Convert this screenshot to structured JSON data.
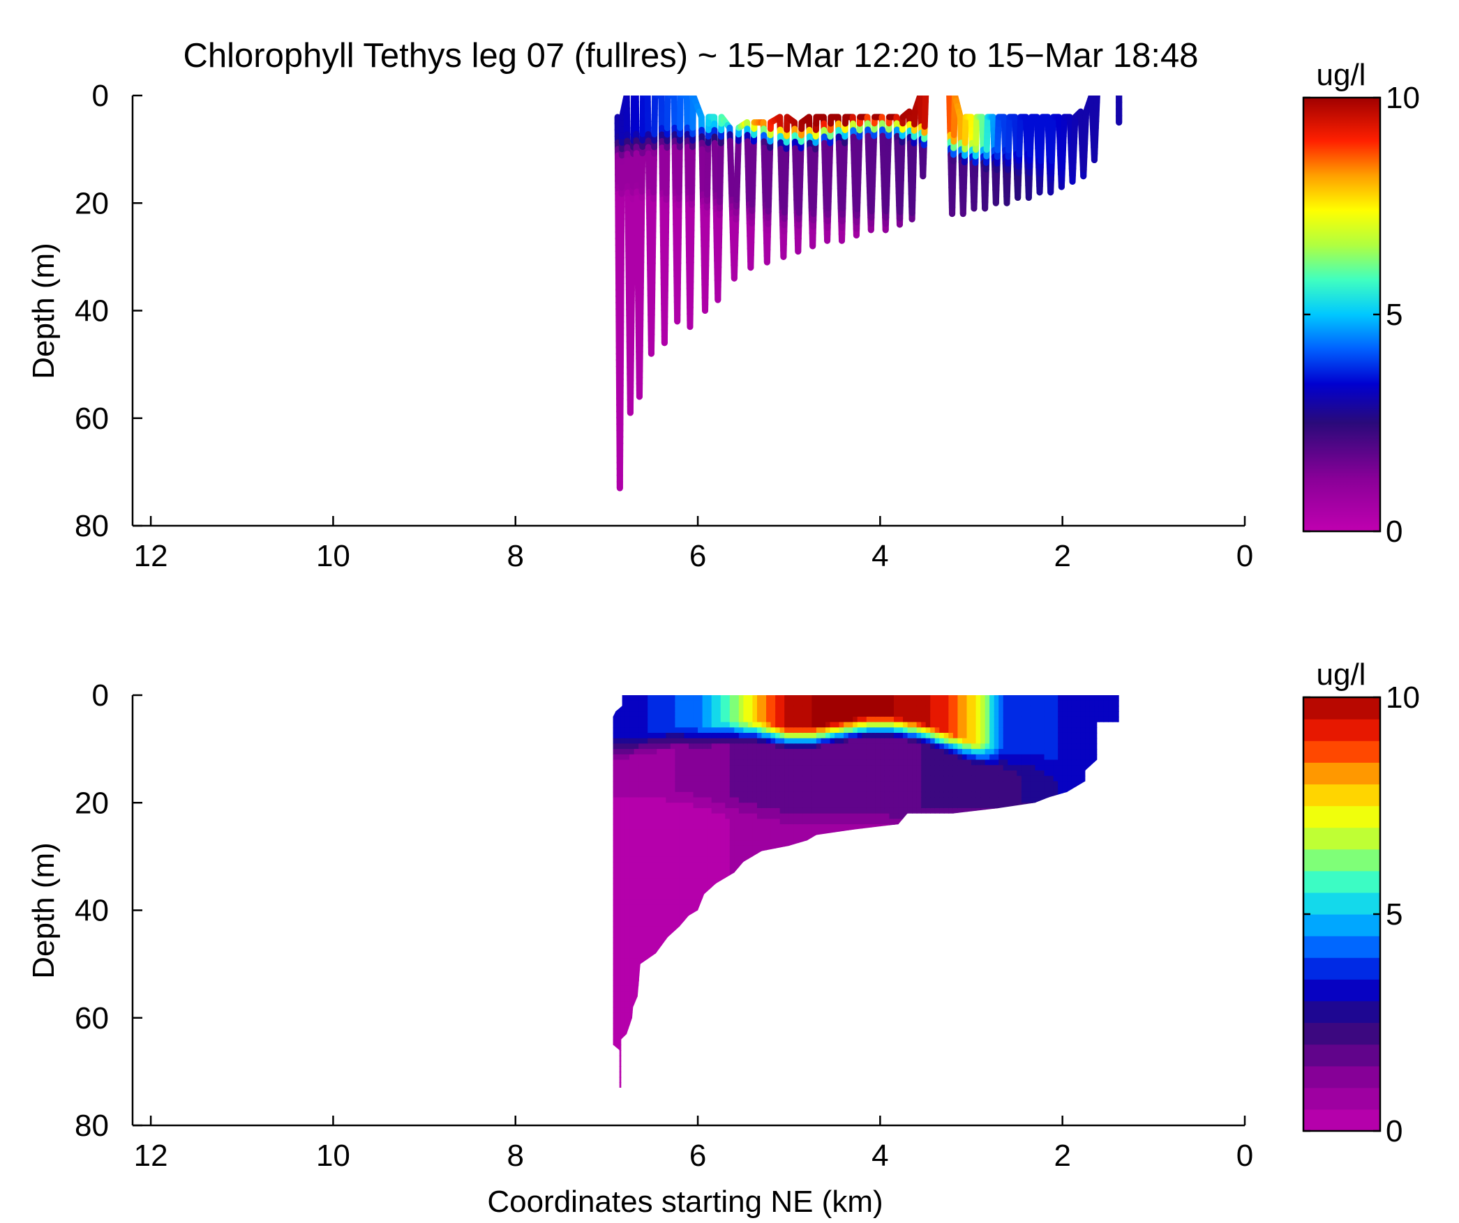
{
  "figure": {
    "title": "Chlorophyll Tethys leg 07 (fullres) ~ 15−Mar 12:20 to 15−Mar 18:48"
  },
  "chart_data": [
    {
      "type": "scatter",
      "title": "Chlorophyll Tethys leg 07 (fullres) ~ 15−Mar 12:20 to 15−Mar 18:48",
      "xlabel": "",
      "ylabel": "Depth (m)",
      "xlim": [
        12.2,
        0
      ],
      "ylim": [
        0,
        80
      ],
      "x_ticks": [
        "12",
        "10",
        "8",
        "6",
        "4",
        "2",
        "0"
      ],
      "x_tick_values": [
        12,
        10,
        8,
        6,
        4,
        2,
        0
      ],
      "y_ticks": [
        "0",
        "20",
        "40",
        "60",
        "80"
      ],
      "y_tick_values": [
        0,
        20,
        40,
        60,
        80
      ],
      "grid": false,
      "colorbar": {
        "label": "ug/l",
        "min": 0,
        "max": 10,
        "ticks": [
          "0",
          "5",
          "10"
        ],
        "tick_values": [
          0,
          5,
          10
        ],
        "colormap": "jet-magenta",
        "discrete": false
      },
      "profiles": [
        {
          "x1": 6.88,
          "x2": 6.83,
          "top": 4,
          "bottom": 73
        },
        {
          "x1": 6.78,
          "x2": 6.7,
          "top": 0,
          "bottom": 59
        },
        {
          "x1": 6.68,
          "x2": 6.6,
          "top": 0,
          "bottom": 56
        },
        {
          "x1": 6.55,
          "x2": 6.47,
          "top": 0,
          "bottom": 48
        },
        {
          "x1": 6.4,
          "x2": 6.33,
          "top": 0,
          "bottom": 46
        },
        {
          "x1": 6.26,
          "x2": 6.19,
          "top": 0,
          "bottom": 42
        },
        {
          "x1": 6.12,
          "x2": 6.05,
          "top": 0,
          "bottom": 43
        },
        {
          "x1": 5.96,
          "x2": 5.88,
          "top": 4,
          "bottom": 40
        },
        {
          "x1": 5.82,
          "x2": 5.74,
          "top": 4,
          "bottom": 38
        },
        {
          "x1": 5.65,
          "x2": 5.55,
          "top": 6,
          "bottom": 34
        },
        {
          "x1": 5.46,
          "x2": 5.38,
          "top": 5,
          "bottom": 32
        },
        {
          "x1": 5.28,
          "x2": 5.2,
          "top": 5,
          "bottom": 31
        },
        {
          "x1": 5.1,
          "x2": 5.02,
          "top": 4,
          "bottom": 30
        },
        {
          "x1": 4.94,
          "x2": 4.86,
          "top": 5,
          "bottom": 29
        },
        {
          "x1": 4.78,
          "x2": 4.7,
          "top": 4,
          "bottom": 28
        },
        {
          "x1": 4.62,
          "x2": 4.54,
          "top": 4,
          "bottom": 27
        },
        {
          "x1": 4.46,
          "x2": 4.38,
          "top": 4,
          "bottom": 27
        },
        {
          "x1": 4.3,
          "x2": 4.22,
          "top": 4,
          "bottom": 26
        },
        {
          "x1": 4.14,
          "x2": 4.06,
          "top": 4,
          "bottom": 25
        },
        {
          "x1": 3.98,
          "x2": 3.9,
          "top": 4,
          "bottom": 25
        },
        {
          "x1": 3.82,
          "x2": 3.75,
          "top": 4,
          "bottom": 24
        },
        {
          "x1": 3.68,
          "x2": 3.62,
          "top": 3,
          "bottom": 23
        },
        {
          "x1": 3.56,
          "x2": 3.5,
          "top": 0,
          "bottom": 15
        },
        {
          "x1": 3.24,
          "x2": 3.18,
          "top": 0,
          "bottom": 22
        },
        {
          "x1": 3.12,
          "x2": 3.06,
          "top": 4,
          "bottom": 22
        },
        {
          "x1": 3.0,
          "x2": 2.94,
          "top": 4,
          "bottom": 21
        },
        {
          "x1": 2.88,
          "x2": 2.82,
          "top": 4,
          "bottom": 21
        },
        {
          "x1": 2.76,
          "x2": 2.7,
          "top": 4,
          "bottom": 20
        },
        {
          "x1": 2.64,
          "x2": 2.58,
          "top": 4,
          "bottom": 20
        },
        {
          "x1": 2.52,
          "x2": 2.46,
          "top": 4,
          "bottom": 19
        },
        {
          "x1": 2.4,
          "x2": 2.34,
          "top": 4,
          "bottom": 19
        },
        {
          "x1": 2.28,
          "x2": 2.22,
          "top": 4,
          "bottom": 18
        },
        {
          "x1": 2.16,
          "x2": 2.1,
          "top": 4,
          "bottom": 18
        },
        {
          "x1": 2.04,
          "x2": 1.98,
          "top": 4,
          "bottom": 17
        },
        {
          "x1": 1.92,
          "x2": 1.86,
          "top": 4,
          "bottom": 16
        },
        {
          "x1": 1.8,
          "x2": 1.74,
          "top": 3,
          "bottom": 15
        },
        {
          "x1": 1.68,
          "x2": 1.62,
          "top": 0,
          "bottom": 12
        },
        {
          "x1": 1.38,
          "x2": 1.38,
          "top": 0,
          "bottom": 5
        }
      ]
    },
    {
      "type": "heatmap",
      "title": "",
      "xlabel": "Coordinates starting NE (km)",
      "ylabel": "Depth (m)",
      "xlim": [
        12.2,
        0
      ],
      "ylim": [
        0,
        80
      ],
      "x_ticks": [
        "12",
        "10",
        "8",
        "6",
        "4",
        "2",
        "0"
      ],
      "x_tick_values": [
        12,
        10,
        8,
        6,
        4,
        2,
        0
      ],
      "y_ticks": [
        "0",
        "20",
        "40",
        "60",
        "80"
      ],
      "y_tick_values": [
        0,
        20,
        40,
        60,
        80
      ],
      "grid": false,
      "colorbar": {
        "label": "ug/l",
        "min": 0,
        "max": 10,
        "ticks": [
          "0",
          "5",
          "10"
        ],
        "tick_values": [
          0,
          5,
          10
        ],
        "colormap": "jet-magenta",
        "discrete": true,
        "levels": 20
      },
      "outline": [
        [
          6.83,
          0
        ],
        [
          1.38,
          0
        ],
        [
          1.38,
          5
        ],
        [
          1.62,
          5
        ],
        [
          1.62,
          12
        ],
        [
          1.75,
          14
        ],
        [
          1.75,
          16
        ],
        [
          1.95,
          18
        ],
        [
          2.15,
          19
        ],
        [
          2.3,
          20
        ],
        [
          2.7,
          21
        ],
        [
          3.2,
          22
        ],
        [
          3.7,
          22
        ],
        [
          3.8,
          24
        ],
        [
          4.3,
          25
        ],
        [
          4.7,
          26
        ],
        [
          4.8,
          27
        ],
        [
          5.0,
          28
        ],
        [
          5.3,
          29
        ],
        [
          5.5,
          31
        ],
        [
          5.6,
          33
        ],
        [
          5.8,
          35
        ],
        [
          5.93,
          37
        ],
        [
          6.0,
          40
        ],
        [
          6.1,
          41
        ],
        [
          6.2,
          43
        ],
        [
          6.33,
          45
        ],
        [
          6.46,
          48
        ],
        [
          6.63,
          50
        ],
        [
          6.66,
          56
        ],
        [
          6.71,
          58
        ],
        [
          6.72,
          60
        ],
        [
          6.78,
          63
        ],
        [
          6.84,
          64
        ],
        [
          6.84,
          73
        ],
        [
          6.86,
          73
        ],
        [
          6.86,
          66
        ],
        [
          6.93,
          65
        ],
        [
          6.93,
          4
        ],
        [
          6.9,
          3
        ],
        [
          6.83,
          2
        ]
      ],
      "surface_profile": {
        "x": [
          6.9,
          6.6,
          6.3,
          6.0,
          5.7,
          5.4,
          5.1,
          4.8,
          4.5,
          4.2,
          3.9,
          3.6,
          3.3,
          3.0,
          2.7,
          2.4,
          2.1,
          1.8,
          1.6,
          1.4
        ],
        "surface": [
          3.0,
          3.5,
          4.0,
          4.5,
          6.0,
          8.0,
          9.5,
          10.0,
          10.0,
          10.0,
          10.0,
          9.8,
          9.0,
          7.5,
          4.0,
          3.5,
          3.5,
          3.0,
          3.0,
          3.0
        ],
        "cline_depth": [
          8,
          7,
          6,
          6,
          5,
          5,
          6,
          6,
          5,
          4,
          4,
          5,
          7,
          9,
          10,
          11,
          12,
          13,
          13,
          5
        ],
        "deep": [
          0.9,
          0.9,
          1.0,
          1.2,
          1.5,
          1.6,
          1.7,
          1.7,
          1.7,
          1.8,
          1.9,
          2.0,
          2.0,
          2.1,
          2.3,
          2.6,
          3.0,
          3.4,
          4.0,
          4.0
        ],
        "deep_depth": [
          17,
          17,
          18,
          18,
          19,
          20,
          21,
          21,
          21,
          21,
          21,
          21,
          21,
          21,
          20,
          20,
          19,
          18,
          15,
          5
        ],
        "bottom": [
          0.4,
          0.4,
          0.4,
          0.4,
          0.5,
          0.5,
          0.6,
          0.7,
          0.7,
          0.7,
          0.8,
          0.9,
          1.0,
          1.1,
          1.3,
          1.6,
          2.0,
          2.5,
          3.0,
          3.0
        ]
      }
    }
  ]
}
